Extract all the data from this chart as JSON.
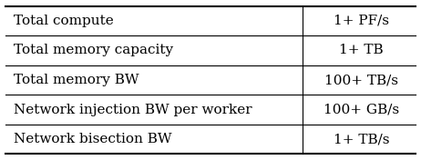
{
  "rows": [
    [
      "Total compute",
      "1+ PF/s"
    ],
    [
      "Total memory capacity",
      "1+ TB"
    ],
    [
      "Total memory BW",
      "100+ TB/s"
    ],
    [
      "Network injection BW per worker",
      "100+ GB/s"
    ],
    [
      "Network bisection BW",
      "1+ TB/s"
    ]
  ],
  "col_split": 0.72,
  "background_color": "#ffffff",
  "line_color": "#000000",
  "text_color": "#000000",
  "font_size": 11
}
